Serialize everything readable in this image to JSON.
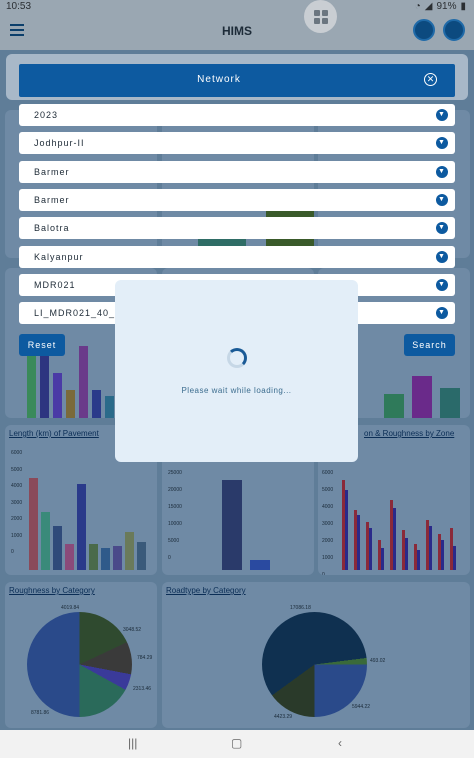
{
  "status_bar": {
    "time": "10:53",
    "battery": "91%"
  },
  "app_bar": {
    "title": "HIMS"
  },
  "network_panel": {
    "title": "Network",
    "dropdowns": [
      {
        "value": "2023"
      },
      {
        "value": "Jodhpur-II"
      },
      {
        "value": "Barmer"
      },
      {
        "value": "Barmer"
      },
      {
        "value": "Balotra"
      },
      {
        "value": "Kalyanpur"
      },
      {
        "value": "MDR021"
      },
      {
        "value": "LI_MDR021_40_0"
      }
    ],
    "reset_label": "Reset",
    "search_label": "Search"
  },
  "loading": {
    "message": "Please wait while loading..."
  },
  "background": {
    "card_titles": {
      "pavement_length": "Length (km) of Pavement",
      "zone": "on & Roughness by Zone",
      "roughness_category": "Roughness by Category",
      "roadtype_category": "Roadtype by Category"
    },
    "tick_labels": {
      "pavement": [
        "6000",
        "5000",
        "4000",
        "3000",
        "2000",
        "1000",
        "0"
      ],
      "middle": [
        "25000",
        "20000",
        "15000",
        "10000",
        "5000",
        "0"
      ],
      "zone": [
        "6000",
        "5000",
        "4000",
        "3000",
        "2000",
        "1000",
        "0"
      ]
    },
    "pie1_labels": [
      "4019.84",
      "3048.52",
      "784.29",
      "2313.46",
      "8781.86"
    ],
    "pie2_labels": [
      "17086.18",
      "493.02",
      "5944.22",
      "4423.29"
    ]
  },
  "colors": {
    "accent": "#0d5aa0",
    "header_dark": "#0b2e56"
  }
}
